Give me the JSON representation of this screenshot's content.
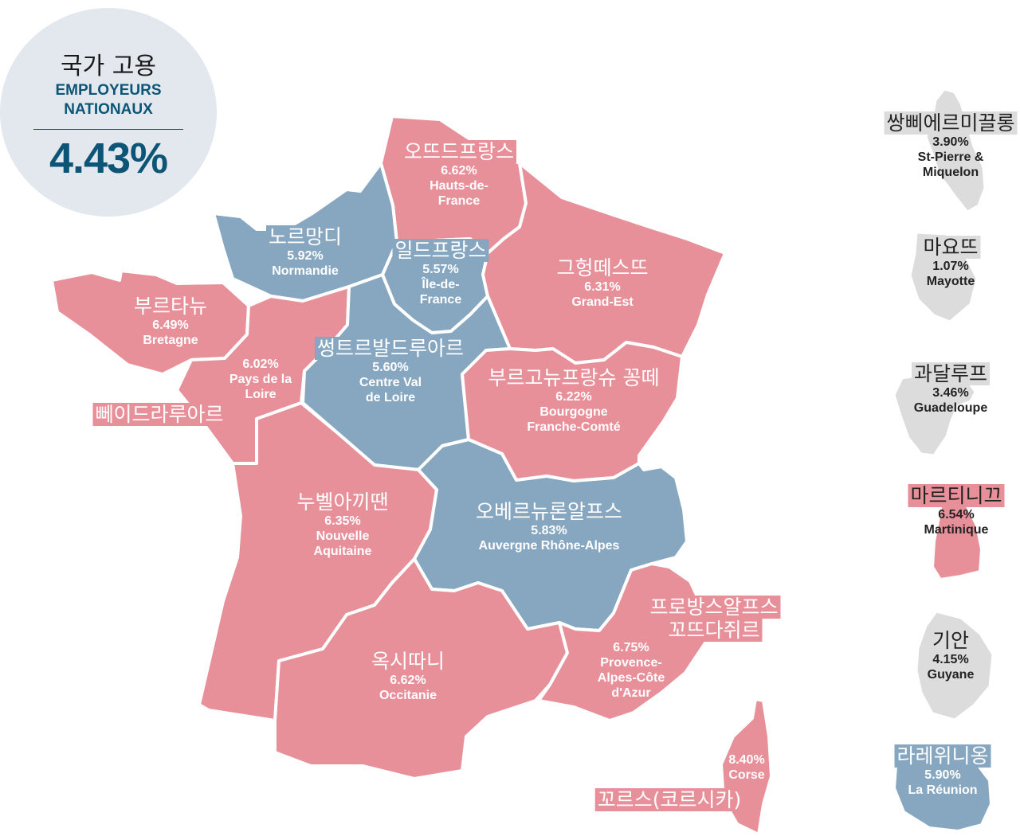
{
  "summary": {
    "title_ko": "국가 고용",
    "title_fr_line1": "EMPLOYEURS",
    "title_fr_line2": "NATIONAUX",
    "value": "4.43%"
  },
  "colors": {
    "above_national": "#e8909a",
    "below_national": "#87a7c1",
    "overseas": "#dcdcdc",
    "accent": "#0c5576"
  },
  "regions": [
    {
      "id": "hauts-de-france",
      "ko": "오뜨드프랑스",
      "value": "6.62%",
      "fr_lines": [
        "Hauts-de-",
        "France"
      ]
    },
    {
      "id": "normandie",
      "ko": "노르망디",
      "value": "5.92%",
      "fr_lines": [
        "Normandie"
      ]
    },
    {
      "id": "ile-de-france",
      "ko": "일드프랑스",
      "value": "5.57%",
      "fr_lines": [
        "Île-de-",
        "France"
      ]
    },
    {
      "id": "grand-est",
      "ko": "그헝떼스뜨",
      "value": "6.31%",
      "fr_lines": [
        "Grand-Est"
      ]
    },
    {
      "id": "bretagne",
      "ko": "부르타뉴",
      "value": "6.49%",
      "fr_lines": [
        "Bretagne"
      ]
    },
    {
      "id": "pays-de-la-loire",
      "ko": "뻬이드라루아르",
      "value": "6.02%",
      "fr_lines": [
        "Pays de la",
        "Loire"
      ]
    },
    {
      "id": "centre-val-de-loire",
      "ko": "썽트르발드루아르",
      "value": "5.60%",
      "fr_lines": [
        "Centre Val",
        "de Loire"
      ]
    },
    {
      "id": "bourgogne-franche-comte",
      "ko": "부르고뉴프랑슈 꽁떼",
      "value": "6.22%",
      "fr_lines": [
        "Bourgogne",
        "Franche-Comté"
      ]
    },
    {
      "id": "nouvelle-aquitaine",
      "ko": "누벨아끼땐",
      "value": "6.35%",
      "fr_lines": [
        "Nouvelle",
        "Aquitaine"
      ]
    },
    {
      "id": "auvergne-rhone-alpes",
      "ko": "오베르뉴론알프스",
      "value": "5.83%",
      "fr_lines": [
        "Auvergne Rhône-Alpes"
      ]
    },
    {
      "id": "occitanie",
      "ko": "옥시따니",
      "value": "6.62%",
      "fr_lines": [
        "Occitanie"
      ]
    },
    {
      "id": "provence-alpes-cote-dazur",
      "ko_lines": [
        "프로방스알프스",
        "꼬뜨다쥐르"
      ],
      "value": "6.75%",
      "fr_lines": [
        "Provence-",
        "Alpes-Côte",
        "d'Azur"
      ]
    },
    {
      "id": "corse",
      "ko": "꼬르스(코르시카)",
      "value": "8.40%",
      "fr_lines": [
        "Corse"
      ]
    }
  ],
  "overseas": [
    {
      "id": "st-pierre-miquelon",
      "ko": "쌍삐에르미끌롱",
      "value": "3.90%",
      "fr_lines": [
        "St-Pierre &",
        "Miquelon"
      ]
    },
    {
      "id": "mayotte",
      "ko": "마요뜨",
      "value": "1.07%",
      "fr_lines": [
        "Mayotte"
      ]
    },
    {
      "id": "guadeloupe",
      "ko": "과달루프",
      "value": "3.46%",
      "fr_lines": [
        "Guadeloupe"
      ]
    },
    {
      "id": "martinique",
      "ko": "마르티니끄",
      "value": "6.54%",
      "fr_lines": [
        "Martinique"
      ]
    },
    {
      "id": "guyane",
      "ko": "기안",
      "value": "4.15%",
      "fr_lines": [
        "Guyane"
      ]
    },
    {
      "id": "la-reunion",
      "ko": "라레위니옹",
      "value": "5.90%",
      "fr_lines": [
        "La Réunion"
      ]
    }
  ]
}
